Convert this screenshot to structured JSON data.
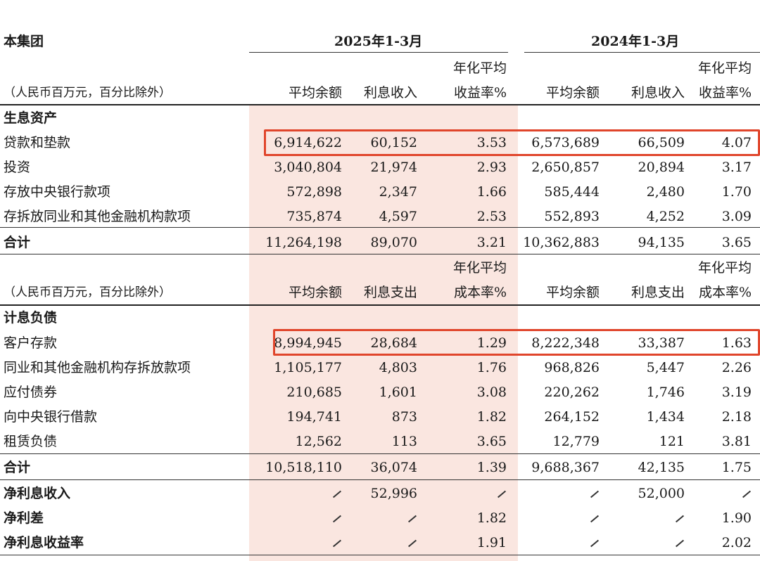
{
  "corner_title": "本集团",
  "period_2025": "2025年1-3月",
  "period_2024": "2024年1-3月",
  "unit_note": "（人民币百万元，百分比除外）",
  "assets_header": {
    "c1": "平均余额",
    "c2": "利息收入",
    "c3a": "年化平均",
    "c3b": "收益率%",
    "c4": "平均余额",
    "c5": "利息收入",
    "c6a": "年化平均",
    "c6b": "收益率%"
  },
  "liab_header": {
    "c1": "平均余额",
    "c2": "利息支出",
    "c3a": "年化平均",
    "c3b": "成本率%",
    "c4": "平均余额",
    "c5": "利息支出",
    "c6a": "年化平均",
    "c6b": "成本率%"
  },
  "section_assets": "生息资产",
  "section_liab": "计息负债",
  "assets": [
    {
      "label": "贷款和垫款",
      "v": [
        "6,914,622",
        "60,152",
        "3.53",
        "6,573,689",
        "66,509",
        "4.07"
      ]
    },
    {
      "label": "投资",
      "v": [
        "3,040,804",
        "21,974",
        "2.93",
        "2,650,857",
        "20,894",
        "3.17"
      ]
    },
    {
      "label": "存放中央银行款项",
      "v": [
        "572,898",
        "2,347",
        "1.66",
        "585,444",
        "2,480",
        "1.70"
      ]
    },
    {
      "label": "存拆放同业和其他金融机构款项",
      "v": [
        "735,874",
        "4,597",
        "2.53",
        "552,893",
        "4,252",
        "3.09"
      ]
    }
  ],
  "assets_total": {
    "label": "合计",
    "v": [
      "11,264,198",
      "89,070",
      "3.21",
      "10,362,883",
      "94,135",
      "3.65"
    ]
  },
  "liabilities": [
    {
      "label": "客户存款",
      "v": [
        "8,994,945",
        "28,684",
        "1.29",
        "8,222,348",
        "33,387",
        "1.63"
      ]
    },
    {
      "label": "同业和其他金融机构存拆放款项",
      "v": [
        "1,105,177",
        "4,803",
        "1.76",
        "968,826",
        "5,447",
        "2.26"
      ]
    },
    {
      "label": "应付债券",
      "v": [
        "210,685",
        "1,601",
        "3.08",
        "220,262",
        "1,746",
        "3.19"
      ]
    },
    {
      "label": "向中央银行借款",
      "v": [
        "194,741",
        "873",
        "1.82",
        "264,152",
        "1,434",
        "2.18"
      ]
    },
    {
      "label": "租赁负债",
      "v": [
        "12,562",
        "113",
        "3.65",
        "12,779",
        "121",
        "3.81"
      ]
    }
  ],
  "liab_total": {
    "label": "合计",
    "v": [
      "10,518,110",
      "36,074",
      "1.39",
      "9,688,367",
      "42,135",
      "1.75"
    ]
  },
  "summary": [
    {
      "label": "净利息收入",
      "v": [
        "/",
        "52,996",
        "/",
        "/",
        "52,000",
        "/"
      ]
    },
    {
      "label": "净利差",
      "v": [
        "/",
        "/",
        "1.82",
        "/",
        "/",
        "1.90"
      ]
    },
    {
      "label": "净利息收益率",
      "v": [
        "/",
        "/",
        "1.91",
        "/",
        "/",
        "2.02"
      ]
    }
  ],
  "highlight_color": "#e0452b",
  "shade_color": "#fae6e0"
}
